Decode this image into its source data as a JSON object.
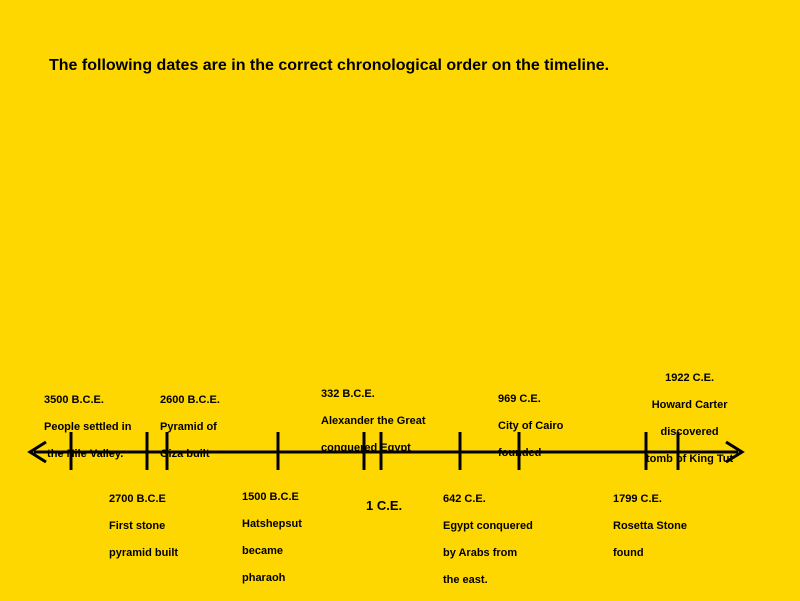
{
  "title": "The following dates are in the correct chronological order on the timeline.",
  "colors": {
    "background": "#FFD700",
    "line": "#000000"
  },
  "events": {
    "e3500": [
      "3500 B.C.E.",
      "People settled in",
      " the Nile Valley."
    ],
    "e2700": [
      "2700 B.C.E",
      "First stone",
      "pyramid built"
    ],
    "e2600": [
      "2600 B.C.E.",
      "Pyramid of",
      "Giza built"
    ],
    "e1500": [
      "1500 B.C.E",
      "Hatshepsut",
      "became",
      "pharaoh"
    ],
    "e332": [
      "332 B.C.E.",
      "Alexander the Great",
      "conquered Egypt"
    ],
    "e1": [
      "1 C.E."
    ],
    "e642": [
      "642 C.E.",
      "Egypt conquered",
      "by Arabs from",
      "the east."
    ],
    "e969": [
      "969 C.E.",
      "City of Cairo",
      "founded"
    ],
    "e1799": [
      "1799 C.E.",
      "Rosetta Stone",
      "found"
    ],
    "e1922": [
      "1922 C.E.",
      "Howard Carter",
      "discovered",
      "tomb of King Tut"
    ]
  }
}
